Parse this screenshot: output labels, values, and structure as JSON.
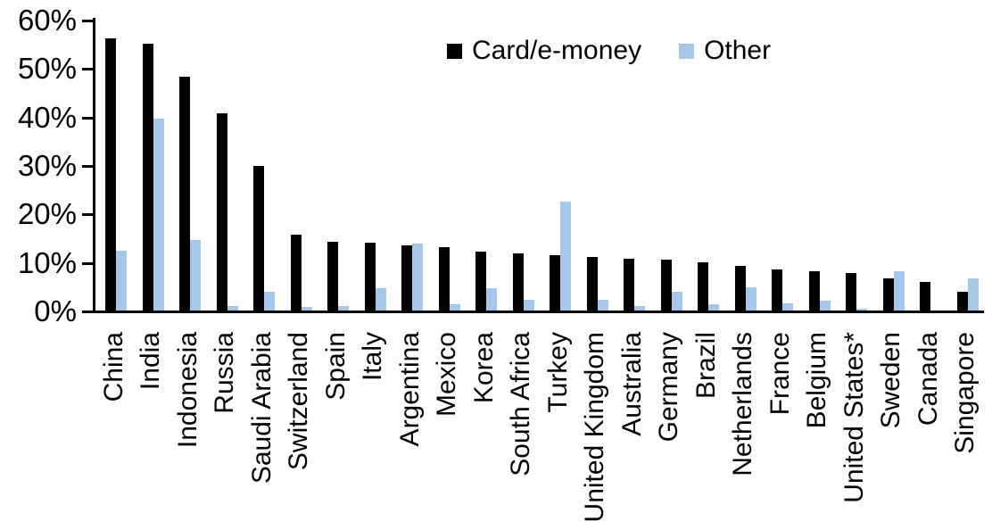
{
  "chart_data": {
    "type": "bar",
    "title": "",
    "categories": [
      "China",
      "India",
      "Indonesia",
      "Russia",
      "Saudi Arabia",
      "Switzerland",
      "Spain",
      "Italy",
      "Argentina",
      "Mexico",
      "Korea",
      "South Africa",
      "Turkey",
      "United Kingdom",
      "Australia",
      "Germany",
      "Brazil",
      "Netherlands",
      "France",
      "Belgium",
      "United States*",
      "Sweden",
      "Canada",
      "Singapore"
    ],
    "series": [
      {
        "name": "Card/e-money",
        "color": "#000000",
        "values": [
          56.2,
          55.0,
          48.3,
          40.6,
          29.9,
          15.7,
          14.2,
          14.0,
          13.5,
          13.0,
          12.2,
          11.8,
          11.5,
          11.0,
          10.7,
          10.5,
          10.0,
          9.2,
          8.5,
          8.1,
          7.8,
          6.6,
          5.9,
          3.8
        ]
      },
      {
        "name": "Other",
        "color": "#A5C8EA",
        "values": [
          12.3,
          39.5,
          14.5,
          1.0,
          3.9,
          0.8,
          1.0,
          4.6,
          13.8,
          1.3,
          4.6,
          2.3,
          22.5,
          2.3,
          1.0,
          3.8,
          1.2,
          4.7,
          1.5,
          2.0,
          0.3,
          8.1,
          0.0,
          6.7
        ]
      }
    ],
    "xlabel": "",
    "ylabel": "",
    "ylim": [
      0,
      60
    ],
    "ytick_step": 10,
    "ytick_labels": [
      "0%",
      "10%",
      "20%",
      "30%",
      "40%",
      "50%",
      "60%"
    ],
    "grid": false,
    "legend_position": "top-center",
    "axis_color": "#000000",
    "background_color": "#FFFFFF"
  }
}
